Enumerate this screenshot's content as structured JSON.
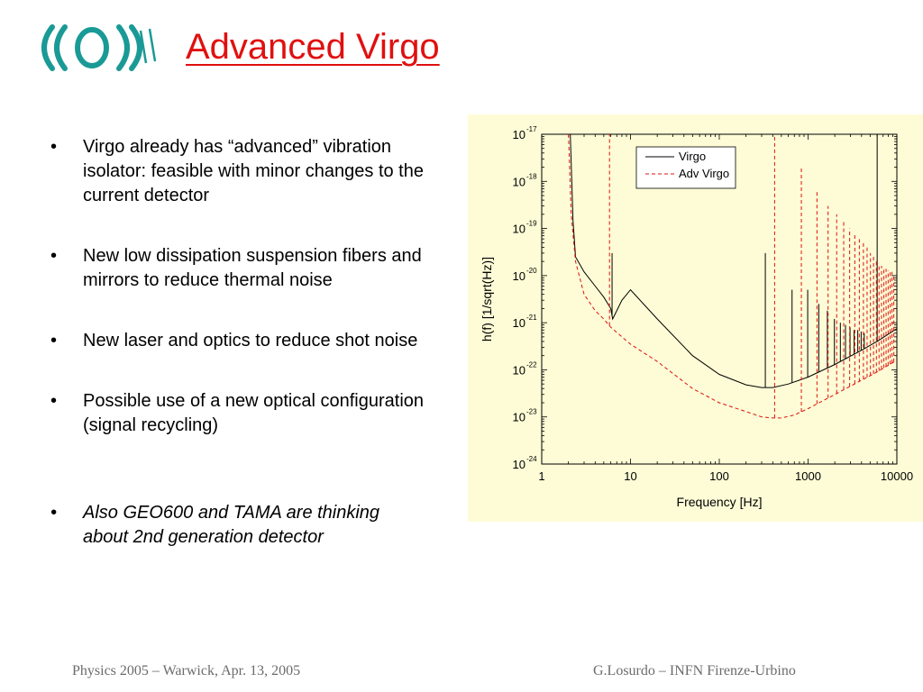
{
  "slide": {
    "title": "Advanced Virgo",
    "logo_name": "virgo-logo",
    "bullets": [
      {
        "text": "Virgo already has “advanced” vibration isolator: feasible with minor changes to the current detector"
      },
      {
        "text": "New low dissipation suspension fibers and mirrors to reduce thermal noise"
      },
      {
        "text": "New laser and optics to reduce shot noise"
      },
      {
        "text": "Possible use of a new optical configuration (signal recycling)"
      },
      {
        "text": "Also GEO600 and TAMA are thinking about 2nd generation detector"
      }
    ],
    "footer_left": "Physics 2005 – Warwick, Apr. 13, 2005",
    "footer_right": "G.Losurdo – INFN Firenze-Urbino"
  },
  "colors": {
    "title": "#e01010",
    "logo": "#1a9a96",
    "chart_background": "#fdfcd6",
    "virgo_line": "#000000",
    "adv_virgo_line": "#e01010"
  },
  "chart_data": {
    "type": "line",
    "title": "",
    "xlabel": "Frequency [Hz]",
    "ylabel": "h(f) [1/sqrt(Hz)]",
    "x_scale": "log",
    "y_scale": "log",
    "xlim": [
      1,
      10000
    ],
    "ylim": [
      1e-24,
      1e-17
    ],
    "x_ticks": [
      {
        "value": 1,
        "label": "1"
      },
      {
        "value": 10,
        "label": "10"
      },
      {
        "value": 100,
        "label": "100"
      },
      {
        "value": 1000,
        "label": "1000"
      },
      {
        "value": 10000,
        "label": "10000"
      }
    ],
    "y_ticks": [
      {
        "value": 1e-17,
        "base": "10",
        "exp": "-17"
      },
      {
        "value": 1e-18,
        "base": "10",
        "exp": "-18"
      },
      {
        "value": 1e-19,
        "base": "10",
        "exp": "-19"
      },
      {
        "value": 1e-20,
        "base": "10",
        "exp": "-20"
      },
      {
        "value": 1e-21,
        "base": "10",
        "exp": "-21"
      },
      {
        "value": 1e-22,
        "base": "10",
        "exp": "-22"
      },
      {
        "value": 1e-23,
        "base": "10",
        "exp": "-23"
      },
      {
        "value": 1e-24,
        "base": "10",
        "exp": "-24"
      }
    ],
    "grid": false,
    "legend_position": "top-right",
    "series": [
      {
        "name": "Virgo",
        "style": "solid",
        "color": "#000000",
        "x": [
          2.1,
          2.25,
          2.4,
          3,
          4,
          5,
          6,
          6.3,
          8,
          10,
          20,
          50,
          100,
          200,
          300,
          400,
          600,
          1000,
          2000,
          4000,
          6000,
          10000
        ],
        "y": [
          1e-17,
          1.5e-19,
          2.5e-20,
          1.2e-20,
          6e-21,
          3.5e-21,
          2e-21,
          1.2e-21,
          3e-21,
          5e-21,
          1.2e-21,
          2e-22,
          8e-23,
          4.8e-23,
          4.2e-23,
          4.2e-23,
          5e-23,
          7e-23,
          1.3e-22,
          2.6e-22,
          4e-22,
          7.5e-22
        ]
      },
      {
        "name": "Adv Virgo",
        "style": "dashed",
        "color": "#e01010",
        "x": [
          2.0,
          2.15,
          2.4,
          3,
          4,
          5,
          6,
          8,
          10,
          20,
          50,
          100,
          200,
          300,
          400,
          500,
          700,
          1000,
          2000,
          4000,
          6000,
          10000
        ],
        "y": [
          1e-17,
          2e-19,
          2e-20,
          4e-21,
          1.8e-21,
          1.2e-21,
          8e-22,
          5e-22,
          3.5e-22,
          1.5e-22,
          4e-23,
          2e-23,
          1.3e-23,
          1e-23,
          9.5e-24,
          9.5e-24,
          1.1e-23,
          1.5e-23,
          3e-23,
          6e-23,
          9e-23,
          1.6e-22
        ]
      }
    ],
    "resonances": [
      {
        "series": "Virgo",
        "x": 6.2,
        "top": 3e-20
      },
      {
        "series": "Virgo",
        "x": 330,
        "top": 3e-20
      },
      {
        "series": "Virgo",
        "x": 660,
        "top": 5e-21
      },
      {
        "series": "Virgo",
        "x": 990,
        "top": 5e-21
      },
      {
        "series": "Virgo",
        "x": 1320,
        "top": 2.5e-21
      },
      {
        "series": "Virgo",
        "x": 1650,
        "top": 1.8e-21
      },
      {
        "series": "Virgo",
        "x": 1980,
        "top": 1.2e-21
      },
      {
        "series": "Virgo",
        "x": 2310,
        "top": 1e-21
      },
      {
        "series": "Virgo",
        "x": 2640,
        "top": 9e-22
      },
      {
        "series": "Virgo",
        "x": 2970,
        "top": 8e-22
      },
      {
        "series": "Virgo",
        "x": 3300,
        "top": 7e-22
      },
      {
        "series": "Virgo",
        "x": 3630,
        "top": 7e-22
      },
      {
        "series": "Virgo",
        "x": 3960,
        "top": 6.5e-22
      },
      {
        "series": "Virgo",
        "x": 4290,
        "top": 6e-22
      },
      {
        "series": "Virgo",
        "x": 6000,
        "top": 1e-17
      },
      {
        "series": "Adv Virgo",
        "x": 5.8,
        "top": 1e-17
      },
      {
        "series": "Adv Virgo",
        "x": 420,
        "top": 1e-17
      },
      {
        "series": "Adv Virgo",
        "x": 840,
        "top": 2e-18
      },
      {
        "series": "Adv Virgo",
        "x": 1260,
        "top": 6e-19
      },
      {
        "series": "Adv Virgo",
        "x": 1680,
        "top": 3e-19
      },
      {
        "series": "Adv Virgo",
        "x": 2100,
        "top": 2e-19
      },
      {
        "series": "Adv Virgo",
        "x": 2520,
        "top": 1.5e-19
      },
      {
        "series": "Adv Virgo",
        "x": 2940,
        "top": 1e-19
      },
      {
        "series": "Adv Virgo",
        "x": 3360,
        "top": 8e-20
      },
      {
        "series": "Adv Virgo",
        "x": 3780,
        "top": 6e-20
      },
      {
        "series": "Adv Virgo",
        "x": 4200,
        "top": 5e-20
      },
      {
        "series": "Adv Virgo",
        "x": 4620,
        "top": 4e-20
      },
      {
        "series": "Adv Virgo",
        "x": 5040,
        "top": 3e-20
      },
      {
        "series": "Adv Virgo",
        "x": 5460,
        "top": 2.5e-20
      },
      {
        "series": "Adv Virgo",
        "x": 5880,
        "top": 2e-20
      },
      {
        "series": "Adv Virgo",
        "x": 6300,
        "top": 1.8e-20
      },
      {
        "series": "Adv Virgo",
        "x": 6720,
        "top": 1.6e-20
      },
      {
        "series": "Adv Virgo",
        "x": 7140,
        "top": 1.5e-20
      },
      {
        "series": "Adv Virgo",
        "x": 7560,
        "top": 1.4e-20
      },
      {
        "series": "Adv Virgo",
        "x": 7980,
        "top": 1.3e-20
      },
      {
        "series": "Adv Virgo",
        "x": 8400,
        "top": 1.2e-20
      },
      {
        "series": "Adv Virgo",
        "x": 8820,
        "top": 1.2e-20
      },
      {
        "series": "Adv Virgo",
        "x": 9240,
        "top": 1.1e-20
      }
    ]
  }
}
